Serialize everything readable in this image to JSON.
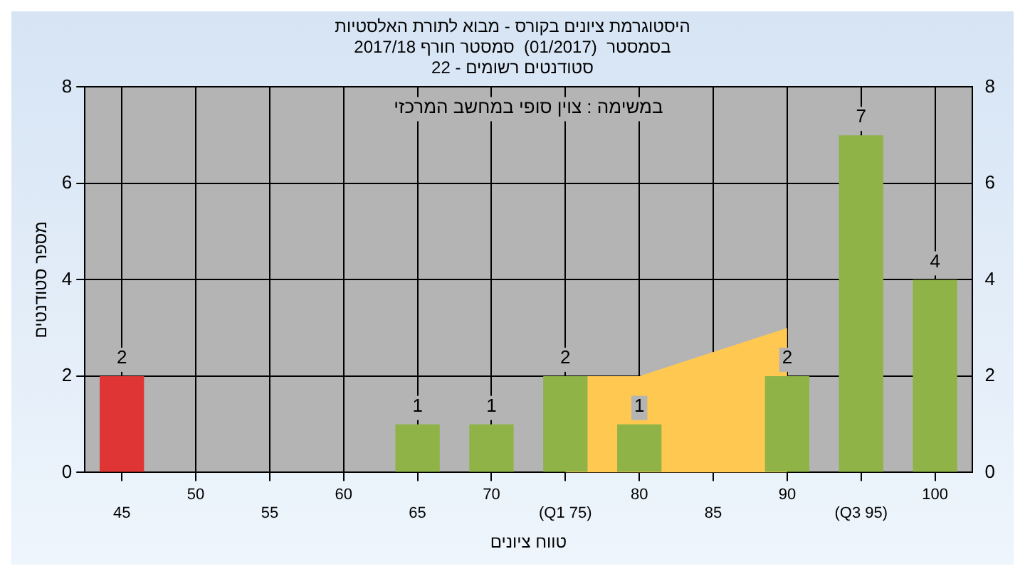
{
  "chart_data": {
    "type": "bar",
    "title": "היסטוגרמת ציונים בקורס - מבוא לתורת האלסטיות",
    "subtitle": "בסמסטר  (01/2017)  סמסטר חורף 2017/18\nסטודנטים רשומים - 22",
    "xlabel": "טווח ציונים",
    "ylabel": "מספר סטודנטים",
    "categories": [
      "45",
      "50",
      "55",
      "60",
      "65",
      "70",
      "(Q1 75)",
      "80",
      "85",
      "90",
      "(Q3 95)",
      "100"
    ],
    "series": [
      {
        "type": "area",
        "color": "#ffc850",
        "values": [
          null,
          null,
          null,
          null,
          null,
          null,
          2,
          2,
          2.5,
          3,
          null,
          null
        ]
      },
      {
        "colors": [
          "#e03535",
          null,
          null,
          null,
          "#8fb347",
          "#8fb347",
          "#8fb347",
          "#8fb347",
          null,
          "#8fb347",
          "#8fb347",
          "#8fb347"
        ],
        "values": [
          2,
          null,
          null,
          null,
          1,
          1,
          2,
          1,
          null,
          2,
          7,
          4
        ],
        "value_labels": [
          "2",
          null,
          null,
          null,
          "1",
          "1",
          "2",
          "1",
          null,
          "2",
          "7",
          "4"
        ]
      }
    ],
    "ylim": [
      0,
      8
    ],
    "yticks": [
      0,
      2,
      4,
      6,
      8
    ],
    "y2lim": [
      0,
      8
    ],
    "y2ticks": [
      0,
      2,
      4,
      6,
      8
    ],
    "grid": true,
    "annotations": [
      "במשימה : צוין סופי במחשב המרכזי"
    ]
  }
}
